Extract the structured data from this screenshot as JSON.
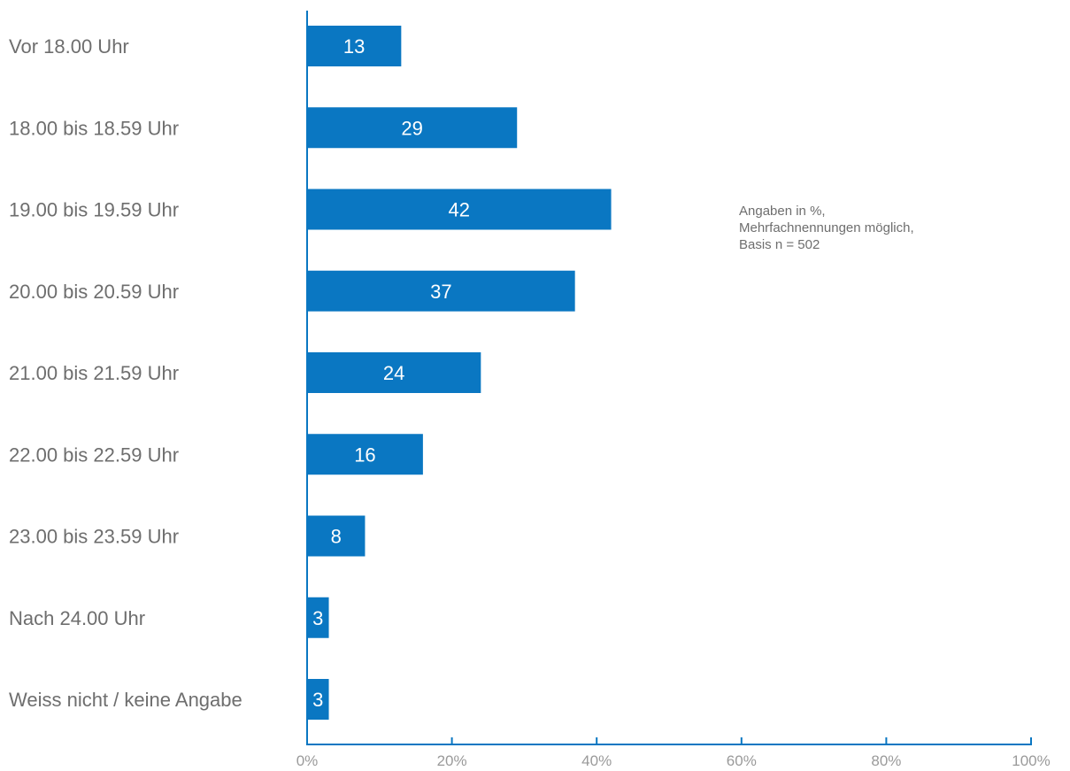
{
  "colors": {
    "bar": "#0a77c2",
    "axis": "#0a77c2",
    "label": "#6e6e6e",
    "tick": "#9a9a9a"
  },
  "note": {
    "line1": "Angaben in %,",
    "line2": "Mehrfachnennungen möglich,",
    "line3": "Basis n = 502"
  },
  "chart_data": {
    "type": "bar",
    "orientation": "horizontal",
    "categories": [
      "Vor 18.00 Uhr",
      "18.00 bis 18.59 Uhr",
      "19.00 bis 19.59 Uhr",
      "20.00 bis 20.59 Uhr",
      "21.00 bis 21.59 Uhr",
      "22.00 bis 22.59 Uhr",
      "23.00 bis 23.59 Uhr",
      "Nach 24.00 Uhr",
      "Weiss nicht / keine Angabe"
    ],
    "values": [
      13,
      29,
      42,
      37,
      24,
      16,
      8,
      3,
      3
    ],
    "bar_labels": [
      "13",
      "29",
      "42",
      "37",
      "24",
      "16",
      "8",
      "3",
      "3"
    ],
    "xlim": [
      0,
      100
    ],
    "xticks": [
      0,
      20,
      40,
      60,
      80,
      100
    ],
    "xtick_labels": [
      "0%",
      "20%",
      "40%",
      "60%",
      "80%",
      "100%"
    ],
    "grid": false,
    "legend": "none"
  }
}
